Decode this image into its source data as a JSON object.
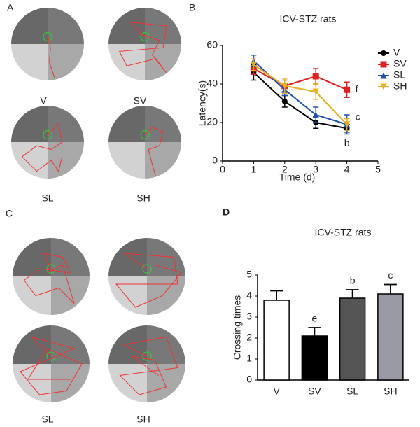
{
  "figure": {
    "panel_letters": [
      "A",
      "B",
      "C",
      "D"
    ],
    "group_labels": [
      "V",
      "SV",
      "SL",
      "SH"
    ]
  },
  "chart_data": [
    {
      "type": "line",
      "title": "ICV-STZ rats",
      "x_label": "Time (d)",
      "y_label": "Latency(s)",
      "x": [
        1,
        2,
        3,
        4
      ],
      "xlim": [
        0,
        5
      ],
      "xticks": [
        0,
        1,
        2,
        3,
        4,
        5
      ],
      "ylim": [
        0,
        60
      ],
      "yticks": [
        0,
        20,
        40,
        60
      ],
      "series": [
        {
          "name": "V",
          "color": "#000000",
          "marker": "circle",
          "values": [
            46,
            31,
            20,
            17
          ],
          "errors": [
            4,
            3,
            3,
            2
          ],
          "letters": [
            null,
            null,
            null,
            "b"
          ]
        },
        {
          "name": "SV",
          "color": "#e02020",
          "marker": "square",
          "values": [
            48,
            39,
            44,
            37
          ],
          "errors": [
            3,
            3,
            4,
            4
          ],
          "letters": [
            null,
            null,
            null,
            "f"
          ]
        },
        {
          "name": "SL",
          "color": "#2050b0",
          "marker": "triangle",
          "values": [
            52,
            37,
            24,
            19
          ],
          "errors": [
            3,
            3,
            4,
            5
          ],
          "letters": [
            null,
            null,
            null,
            "c"
          ]
        },
        {
          "name": "SH",
          "color": "#e8b020",
          "marker": "triangle-down",
          "values": [
            50,
            39,
            36,
            19
          ],
          "errors": [
            3,
            4,
            4,
            3
          ],
          "letters": [
            null,
            null,
            null,
            null
          ]
        }
      ]
    },
    {
      "type": "bar",
      "title": "ICV-STZ rats",
      "y_label": "Crossing times",
      "categories": [
        "V",
        "SV",
        "SL",
        "SH"
      ],
      "values": [
        3.8,
        2.1,
        3.9,
        4.1
      ],
      "errors": [
        0.45,
        0.4,
        0.4,
        0.45
      ],
      "colors": [
        "#ffffff",
        "#000000",
        "#555555",
        "#9a9aa4"
      ],
      "letters": [
        null,
        "e",
        "b",
        "c"
      ],
      "ylim": [
        0,
        5
      ],
      "yticks": [
        0,
        1,
        2,
        3,
        4,
        5
      ]
    }
  ]
}
